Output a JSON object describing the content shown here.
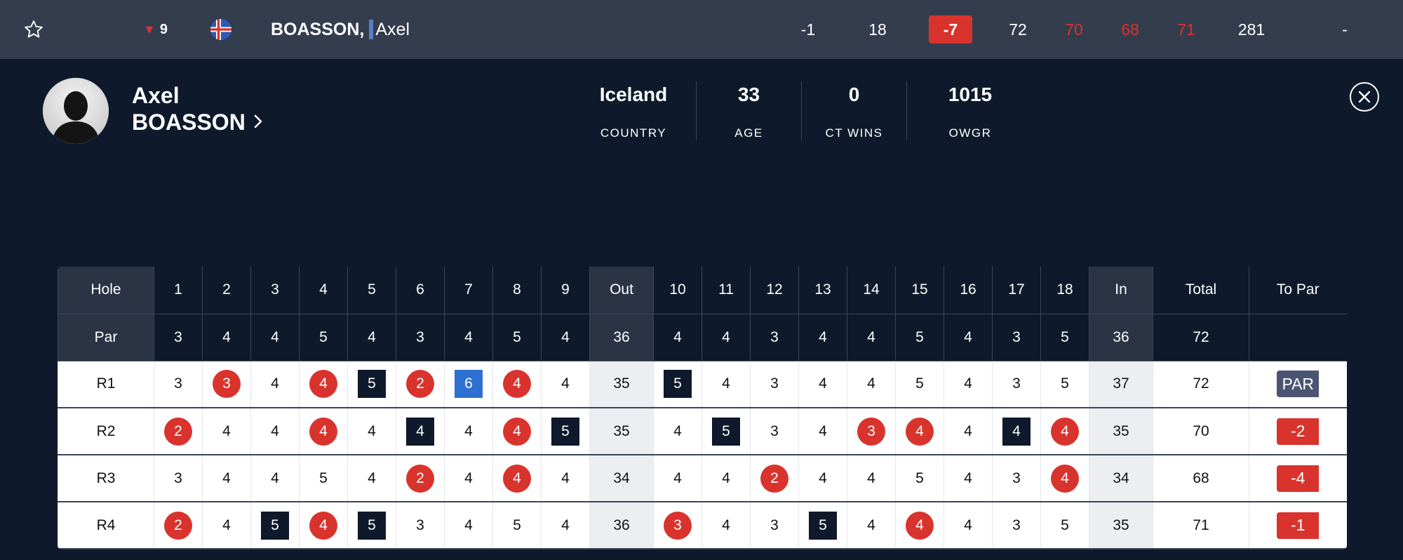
{
  "top_row": {
    "movement": "9",
    "player_last": "BOASSON,",
    "player_first": "Axel",
    "today": "-1",
    "thru": "18",
    "to_par": "-7",
    "rounds": [
      "72",
      "70",
      "68",
      "71"
    ],
    "total": "281",
    "extra": "-",
    "colors": {
      "red": "#d9332e",
      "bar": "#343d4e"
    }
  },
  "profile": {
    "first_name": "Axel",
    "last_name": "BOASSON",
    "stats": [
      {
        "value": "Iceland",
        "label": "COUNTRY"
      },
      {
        "value": "33",
        "label": "AGE"
      },
      {
        "value": "0",
        "label": "CT WINS"
      },
      {
        "value": "1015",
        "label": "OWGR"
      }
    ]
  },
  "scorecard": {
    "hole_label": "Hole",
    "par_label": "Par",
    "holes": [
      "1",
      "2",
      "3",
      "4",
      "5",
      "6",
      "7",
      "8",
      "9",
      "Out",
      "10",
      "11",
      "12",
      "13",
      "14",
      "15",
      "16",
      "17",
      "18",
      "In",
      "Total",
      "To Par"
    ],
    "par": [
      "3",
      "4",
      "4",
      "5",
      "4",
      "3",
      "4",
      "5",
      "4",
      "36",
      "4",
      "4",
      "3",
      "4",
      "4",
      "5",
      "4",
      "3",
      "5",
      "36",
      "72",
      ""
    ],
    "rounds": [
      {
        "label": "R1",
        "scores": [
          "3",
          "3",
          "4",
          "4",
          "5",
          "2",
          "6",
          "4",
          "4",
          "35",
          "5",
          "4",
          "3",
          "4",
          "4",
          "5",
          "4",
          "3",
          "5",
          "37",
          "72"
        ],
        "marks": [
          "",
          "birdie",
          "",
          "birdie",
          "bogey",
          "birdie",
          "dbl",
          "birdie",
          "",
          "",
          "bogey",
          "",
          "",
          "",
          "",
          "",
          "",
          "",
          "",
          "",
          ""
        ],
        "to_par": "PAR",
        "to_par_style": "even"
      },
      {
        "label": "R2",
        "scores": [
          "2",
          "4",
          "4",
          "4",
          "4",
          "4",
          "4",
          "4",
          "5",
          "35",
          "4",
          "5",
          "3",
          "4",
          "3",
          "4",
          "4",
          "4",
          "4",
          "35",
          "70"
        ],
        "marks": [
          "birdie",
          "",
          "",
          "birdie",
          "",
          "bogey",
          "",
          "birdie",
          "bogey",
          "",
          "",
          "bogey",
          "",
          "",
          "birdie",
          "birdie",
          "",
          "bogey",
          "birdie",
          "",
          ""
        ],
        "to_par": "-2",
        "to_par_style": "neg"
      },
      {
        "label": "R3",
        "scores": [
          "3",
          "4",
          "4",
          "5",
          "4",
          "2",
          "4",
          "4",
          "4",
          "34",
          "4",
          "4",
          "2",
          "4",
          "4",
          "5",
          "4",
          "3",
          "4",
          "34",
          "68"
        ],
        "marks": [
          "",
          "",
          "",
          "",
          "",
          "birdie",
          "",
          "birdie",
          "",
          "",
          "",
          "",
          "birdie",
          "",
          "",
          "",
          "",
          "",
          "birdie",
          "",
          ""
        ],
        "to_par": "-4",
        "to_par_style": "neg"
      },
      {
        "label": "R4",
        "scores": [
          "2",
          "4",
          "5",
          "4",
          "5",
          "3",
          "4",
          "5",
          "4",
          "36",
          "3",
          "4",
          "3",
          "5",
          "4",
          "4",
          "4",
          "3",
          "5",
          "35",
          "71"
        ],
        "marks": [
          "birdie",
          "",
          "bogey",
          "birdie",
          "bogey",
          "",
          "",
          "",
          "",
          "",
          "birdie",
          "",
          "",
          "bogey",
          "",
          "birdie",
          "",
          "",
          "",
          "",
          ""
        ],
        "to_par": "-1",
        "to_par_style": "neg"
      }
    ]
  },
  "icons": {
    "favorite": "star-outline-icon",
    "movement": "down-triangle-icon",
    "flag": "iceland-flag-icon",
    "more": "chevron-right-icon",
    "close": "close-circle-icon"
  }
}
